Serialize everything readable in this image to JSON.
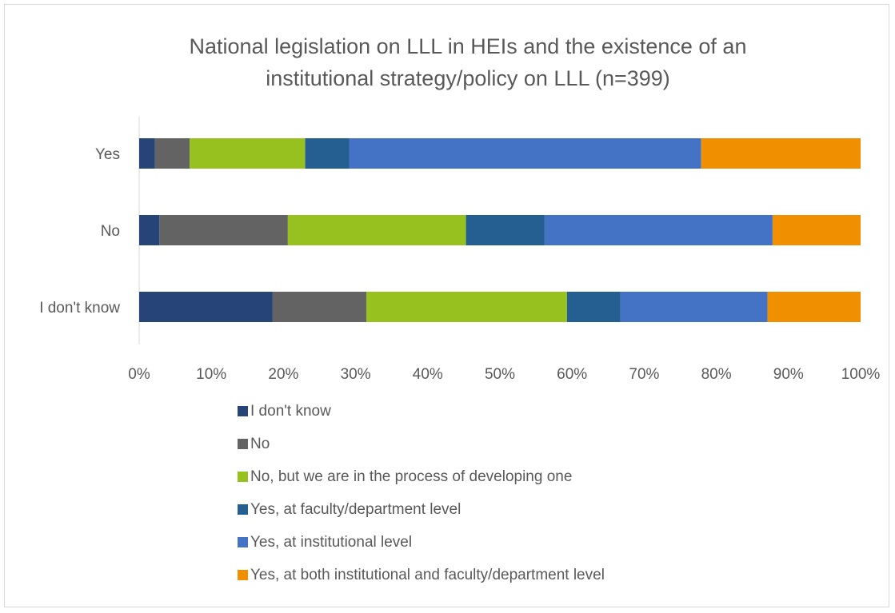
{
  "chart_data": {
    "type": "bar",
    "orientation": "horizontal",
    "stacked": true,
    "percent_stacked": true,
    "title": "National legislation on LLL in HEIs and the existence of an institutional strategy/policy on LLL (n=399)",
    "title_lines": [
      "National legislation on LLL in HEIs and the existence of an",
      "institutional strategy/policy on LLL (n=399)"
    ],
    "categories": [
      "Yes",
      "No",
      "I don't know"
    ],
    "xlim": [
      0,
      100
    ],
    "x_ticks": [
      "0%",
      "10%",
      "20%",
      "30%",
      "40%",
      "50%",
      "60%",
      "70%",
      "80%",
      "90%",
      "100%"
    ],
    "grid": false,
    "legend_position": "bottom",
    "series": [
      {
        "name": "I don't know",
        "color": "#264478",
        "values": [
          2.2,
          2.8,
          18.5
        ]
      },
      {
        "name": "No",
        "color": "#636363",
        "values": [
          4.8,
          17.8,
          13.0
        ]
      },
      {
        "name": "No, but we are in the process of developing one",
        "color": "#97c11f",
        "values": [
          16.0,
          24.7,
          27.8
        ]
      },
      {
        "name": "Yes, at faculty/department level",
        "color": "#255e91",
        "values": [
          6.1,
          10.9,
          7.4
        ]
      },
      {
        "name": "Yes, at institutional level",
        "color": "#4472c4",
        "values": [
          48.8,
          31.6,
          20.4
        ]
      },
      {
        "name": "Yes, at both institutional and faculty/department level",
        "color": "#f09000",
        "values": [
          22.1,
          12.2,
          12.9
        ]
      }
    ]
  }
}
